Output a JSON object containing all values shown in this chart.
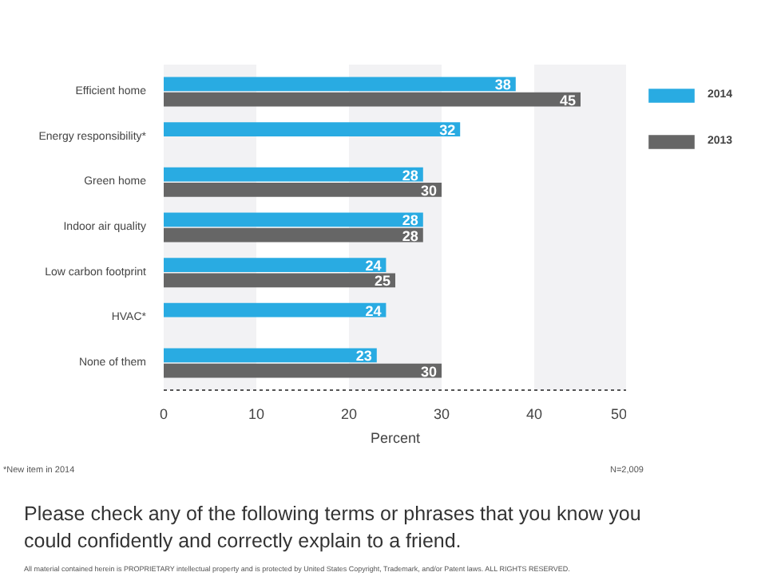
{
  "chart_data": {
    "type": "bar",
    "orientation": "horizontal",
    "title": "Please check any of the following terms or phrases that you know you could confidently and correctly explain to a friend.",
    "xlabel": "Percent",
    "categories": [
      "Efficient home",
      "Energy responsibility*",
      "Green home",
      "Indoor air quality",
      "Low carbon footprint",
      "HVAC*",
      "None of them"
    ],
    "series": [
      {
        "name": "2014",
        "color": "#29abe2",
        "values": [
          38,
          32,
          28,
          28,
          24,
          24,
          23
        ]
      },
      {
        "name": "2013",
        "color": "#666666",
        "values": [
          45,
          null,
          30,
          28,
          25,
          null,
          30
        ]
      }
    ],
    "xlim": [
      0,
      50
    ],
    "xticks": [
      0,
      10,
      20,
      30,
      40,
      50
    ],
    "bands": [
      {
        "axis": "x",
        "from": 0,
        "to": 10,
        "color": "#f2f2f4"
      },
      {
        "axis": "x",
        "from": 20,
        "to": 30,
        "color": "#f2f2f4"
      },
      {
        "axis": "x",
        "from": 40,
        "to": 50,
        "color": "#f2f2f4"
      }
    ],
    "data_labels": true,
    "grid": false,
    "legend": "right",
    "annotations": [
      "*New item in 2014",
      "N=2,009",
      "All material contained herein is PROPRIETARY intellectual property and is protected by United States Copyright, Trademark, and/or Patent laws. ALL RIGHTS RESERVED."
    ]
  }
}
